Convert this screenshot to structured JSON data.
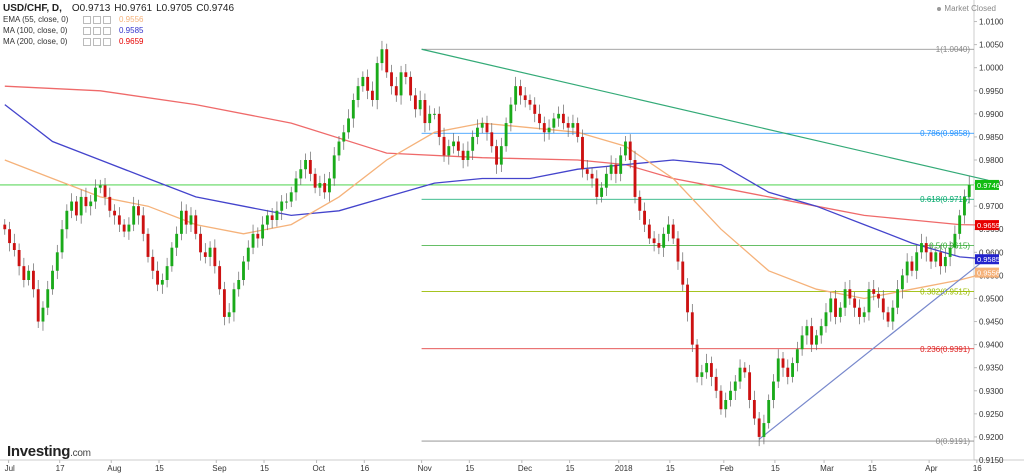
{
  "header": {
    "symbol": "USD/CHF, D,",
    "open": "O0.9713",
    "high": "H0.9761",
    "low": "L0.9705",
    "close": "C0.9746",
    "market_status": "Market Closed"
  },
  "indicators": [
    {
      "label": "EMA (55, close, 0)",
      "value": "0.9556",
      "color": "#f5b27a"
    },
    {
      "label": "MA (100, close, 0)",
      "value": "0.9585",
      "color": "#3333cc"
    },
    {
      "label": "MA (200, close, 0)",
      "value": "0.9659",
      "color": "#e60000"
    }
  ],
  "brand": {
    "name": "Investing",
    "tld": ".com"
  },
  "chart_data": {
    "type": "candlestick",
    "ylim": [
      0.915,
      1.0125
    ],
    "y_ticks": [
      "1.0100",
      "1.0050",
      "1.0000",
      "0.9950",
      "0.9900",
      "0.9850",
      "0.9800",
      "0.9750",
      "0.9700",
      "0.9650",
      "0.9600",
      "0.9550",
      "0.9500",
      "0.9450",
      "0.9400",
      "0.9350",
      "0.9300",
      "0.9250",
      "0.9200",
      "0.9150"
    ],
    "x_labels": [
      {
        "label": "Jul",
        "x": 0.8
      },
      {
        "label": "17",
        "x": 11.5
      },
      {
        "label": "Aug",
        "x": 22.3
      },
      {
        "label": "15",
        "x": 32.3
      },
      {
        "label": "Sep",
        "x": 44.3
      },
      {
        "label": "15",
        "x": 54.3
      },
      {
        "label": "Oct",
        "x": 65.3
      },
      {
        "label": "16",
        "x": 75.3
      },
      {
        "label": "Nov",
        "x": 87.3
      },
      {
        "label": "15",
        "x": 97.3
      },
      {
        "label": "Dec",
        "x": 108.3
      },
      {
        "label": "15",
        "x": 118.3
      },
      {
        "label": "2018",
        "x": 128.6
      },
      {
        "label": "15",
        "x": 139.3
      },
      {
        "label": "Feb",
        "x": 150.6
      },
      {
        "label": "15",
        "x": 161.3
      },
      {
        "label": "Mar",
        "x": 171.6
      },
      {
        "label": "15",
        "x": 181.6
      },
      {
        "label": "Apr",
        "x": 193.6
      },
      {
        "label": "16",
        "x": 203.6
      }
    ],
    "closes": [
      0.965,
      0.962,
      0.9605,
      0.957,
      0.954,
      0.956,
      0.952,
      0.945,
      0.948,
      0.952,
      0.956,
      0.96,
      0.965,
      0.969,
      0.971,
      0.968,
      0.972,
      0.97,
      0.971,
      0.974,
      0.9745,
      0.972,
      0.969,
      0.968,
      0.966,
      0.9645,
      0.966,
      0.97,
      0.968,
      0.964,
      0.959,
      0.956,
      0.953,
      0.954,
      0.957,
      0.961,
      0.964,
      0.969,
      0.966,
      0.968,
      0.964,
      0.96,
      0.959,
      0.961,
      0.957,
      0.952,
      0.946,
      0.947,
      0.952,
      0.954,
      0.958,
      0.961,
      0.964,
      0.963,
      0.966,
      0.968,
      0.967,
      0.969,
      0.971,
      0.971,
      0.973,
      0.976,
      0.978,
      0.98,
      0.977,
      0.974,
      0.975,
      0.973,
      0.976,
      0.981,
      0.984,
      0.986,
      0.989,
      0.993,
      0.996,
      0.998,
      0.995,
      0.993,
      1.001,
      1.004,
      0.999,
      0.996,
      0.994,
      0.999,
      0.998,
      0.994,
      0.991,
      0.993,
      0.988,
      0.99,
      0.99,
      0.985,
      0.981,
      0.983,
      0.984,
      0.982,
      0.98,
      0.982,
      0.985,
      0.987,
      0.988,
      0.986,
      0.983,
      0.979,
      0.983,
      0.988,
      0.992,
      0.996,
      0.994,
      0.993,
      0.992,
      0.99,
      0.988,
      0.986,
      0.987,
      0.989,
      0.99,
      0.988,
      0.987,
      0.988,
      0.985,
      0.978,
      0.977,
      0.976,
      0.972,
      0.974,
      0.977,
      0.979,
      0.977,
      0.981,
      0.984,
      0.98,
      0.972,
      0.969,
      0.966,
      0.963,
      0.962,
      0.961,
      0.964,
      0.966,
      0.963,
      0.958,
      0.953,
      0.947,
      0.94,
      0.933,
      0.934,
      0.936,
      0.933,
      0.93,
      0.926,
      0.928,
      0.93,
      0.932,
      0.935,
      0.934,
      0.928,
      0.924,
      0.92,
      0.923,
      0.928,
      0.932,
      0.937,
      0.935,
      0.933,
      0.936,
      0.939,
      0.942,
      0.944,
      0.94,
      0.942,
      0.944,
      0.947,
      0.95,
      0.946,
      0.948,
      0.952,
      0.95,
      0.948,
      0.946,
      0.947,
      0.952,
      0.951,
      0.95,
      0.947,
      0.945,
      0.948,
      0.952,
      0.955,
      0.958,
      0.956,
      0.96,
      0.962,
      0.96,
      0.958,
      0.96,
      0.957,
      0.959,
      0.961,
      0.964,
      0.968,
      0.972,
      0.9746
    ],
    "current_price": {
      "label": "0.9746",
      "value": 0.9746,
      "color": "#11bb11"
    },
    "price_tags": [
      {
        "label": "0.9659",
        "value": 0.9659,
        "color": "#e60000"
      },
      {
        "label": "0.9585",
        "value": 0.9585,
        "color": "#2222cc"
      },
      {
        "label": "0.9556",
        "value": 0.9556,
        "color": "#f5b27a"
      }
    ],
    "fib_levels": [
      {
        "label": "1(1.0040)",
        "value": 1.004,
        "color": "#888888"
      },
      {
        "label": "0.786(0.9858)",
        "value": 0.9858,
        "color": "#1e90ff"
      },
      {
        "label": "0.618(0.9715)",
        "value": 0.9715,
        "color": "#00a86b"
      },
      {
        "label": "0.5(0.9615)",
        "value": 0.9615,
        "color": "#33aa33"
      },
      {
        "label": "0.382(0.9515)",
        "value": 0.9515,
        "color": "#99bb00"
      },
      {
        "label": "0.236(0.9391)",
        "value": 0.9391,
        "color": "#dd2222"
      },
      {
        "label": "0(0.9191)",
        "value": 0.9191,
        "color": "#888888"
      }
    ],
    "horizontal_line": {
      "value": 0.9746,
      "color": "#33cc33"
    },
    "trend_lines": [
      {
        "from": [
          87.3,
          1.004
        ],
        "to": [
          206,
          0.9756
        ],
        "color": "#33aa77"
      },
      {
        "from": [
          158,
          0.9195
        ],
        "to": [
          206,
          0.959
        ],
        "color": "#7788cc"
      }
    ],
    "mas": [
      {
        "name": "MA (200, close, 0)",
        "color": "#ef6a6a",
        "points": [
          [
            0,
            0.996
          ],
          [
            20,
            0.995
          ],
          [
            40,
            0.992
          ],
          [
            60,
            0.988
          ],
          [
            80,
            0.9815
          ],
          [
            100,
            0.9805
          ],
          [
            120,
            0.98
          ],
          [
            130,
            0.979
          ],
          [
            140,
            0.976
          ],
          [
            150,
            0.974
          ],
          [
            160,
            0.972
          ],
          [
            170,
            0.97
          ],
          [
            180,
            0.968
          ],
          [
            190,
            0.967
          ],
          [
            200,
            0.966
          ],
          [
            206,
            0.9659
          ]
        ]
      },
      {
        "name": "MA (100, close, 0)",
        "color": "#4444cc",
        "points": [
          [
            0,
            0.992
          ],
          [
            10,
            0.984
          ],
          [
            20,
            0.98
          ],
          [
            30,
            0.976
          ],
          [
            40,
            0.972
          ],
          [
            50,
            0.97
          ],
          [
            60,
            0.968
          ],
          [
            70,
            0.969
          ],
          [
            80,
            0.972
          ],
          [
            90,
            0.975
          ],
          [
            100,
            0.976
          ],
          [
            110,
            0.976
          ],
          [
            120,
            0.978
          ],
          [
            130,
            0.979
          ],
          [
            140,
            0.98
          ],
          [
            150,
            0.979
          ],
          [
            160,
            0.973
          ],
          [
            170,
            0.97
          ],
          [
            180,
            0.966
          ],
          [
            190,
            0.962
          ],
          [
            200,
            0.959
          ],
          [
            206,
            0.9585
          ]
        ]
      },
      {
        "name": "EMA (55, close, 0)",
        "color": "#f5b27a",
        "points": [
          [
            0,
            0.98
          ],
          [
            10,
            0.976
          ],
          [
            20,
            0.972
          ],
          [
            30,
            0.97
          ],
          [
            40,
            0.966
          ],
          [
            50,
            0.964
          ],
          [
            60,
            0.966
          ],
          [
            70,
            0.972
          ],
          [
            80,
            0.98
          ],
          [
            90,
            0.986
          ],
          [
            100,
            0.988
          ],
          [
            110,
            0.987
          ],
          [
            120,
            0.986
          ],
          [
            130,
            0.983
          ],
          [
            140,
            0.976
          ],
          [
            150,
            0.965
          ],
          [
            160,
            0.956
          ],
          [
            170,
            0.952
          ],
          [
            180,
            0.95
          ],
          [
            190,
            0.952
          ],
          [
            200,
            0.954
          ],
          [
            206,
            0.9556
          ]
        ]
      }
    ]
  }
}
